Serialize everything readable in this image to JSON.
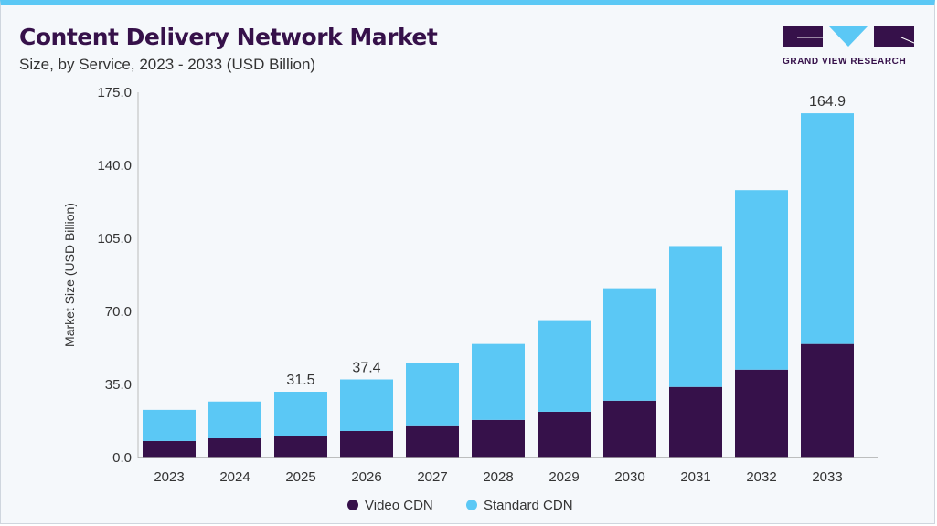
{
  "header": {
    "title": "Content Delivery Network Market",
    "subtitle": "Size, by  Service, 2023 - 2033 (USD Billion)"
  },
  "logo": {
    "text": "GRAND VIEW RESEARCH"
  },
  "chart_data": {
    "type": "bar",
    "stacked": true,
    "categories": [
      "2023",
      "2024",
      "2025",
      "2026",
      "2027",
      "2028",
      "2029",
      "2030",
      "2031",
      "2032",
      "2033"
    ],
    "series": [
      {
        "name": "Video CDN",
        "color": "#36114a",
        "values": [
          7.9,
          9.2,
          10.5,
          12.7,
          15.4,
          18.0,
          21.9,
          27.2,
          33.8,
          42.1,
          54.4
        ]
      },
      {
        "name": "Standard CDN",
        "color": "#5bc8f5",
        "values": [
          14.9,
          17.6,
          21.0,
          24.7,
          29.8,
          36.4,
          43.9,
          53.9,
          67.5,
          86.0,
          110.5
        ]
      }
    ],
    "data_labels": {
      "2025": "31.5",
      "2026": "37.4",
      "2033": "164.9"
    },
    "ylabel": "Market Size (USD Billion)",
    "xlabel": "",
    "ylim": [
      0,
      175
    ],
    "yticks": [
      "0.0",
      "35.0",
      "70.0",
      "105.0",
      "140.0",
      "175.0"
    ],
    "grid": false,
    "legend": "bottom"
  }
}
